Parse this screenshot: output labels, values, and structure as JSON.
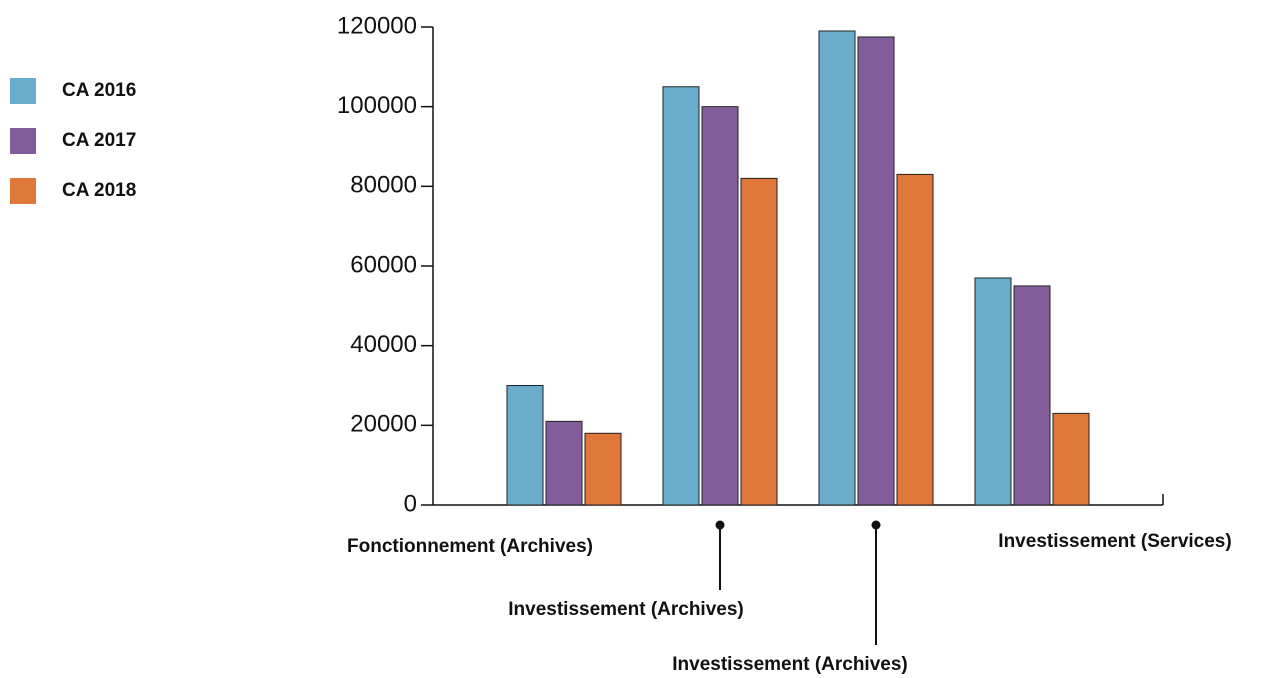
{
  "chart_data": {
    "type": "bar",
    "categories": [
      "Fonctionnement (Archives)",
      "Investissement (Archives)",
      "Investissement (Archives)",
      "Investissement (Services)"
    ],
    "series": [
      {
        "name": "CA 2016",
        "color": "#6aaccb",
        "values": [
          30000,
          105000,
          119000,
          57000
        ]
      },
      {
        "name": "CA 2017",
        "color": "#835d9b",
        "values": [
          21000,
          100000,
          117500,
          55000
        ]
      },
      {
        "name": "CA 2018",
        "color": "#e0773a",
        "values": [
          18000,
          82000,
          83000,
          23000
        ]
      }
    ],
    "ylim": [
      0,
      120000
    ],
    "yticks": [
      0,
      20000,
      40000,
      60000,
      80000,
      100000,
      120000
    ],
    "legend": "top-left"
  }
}
